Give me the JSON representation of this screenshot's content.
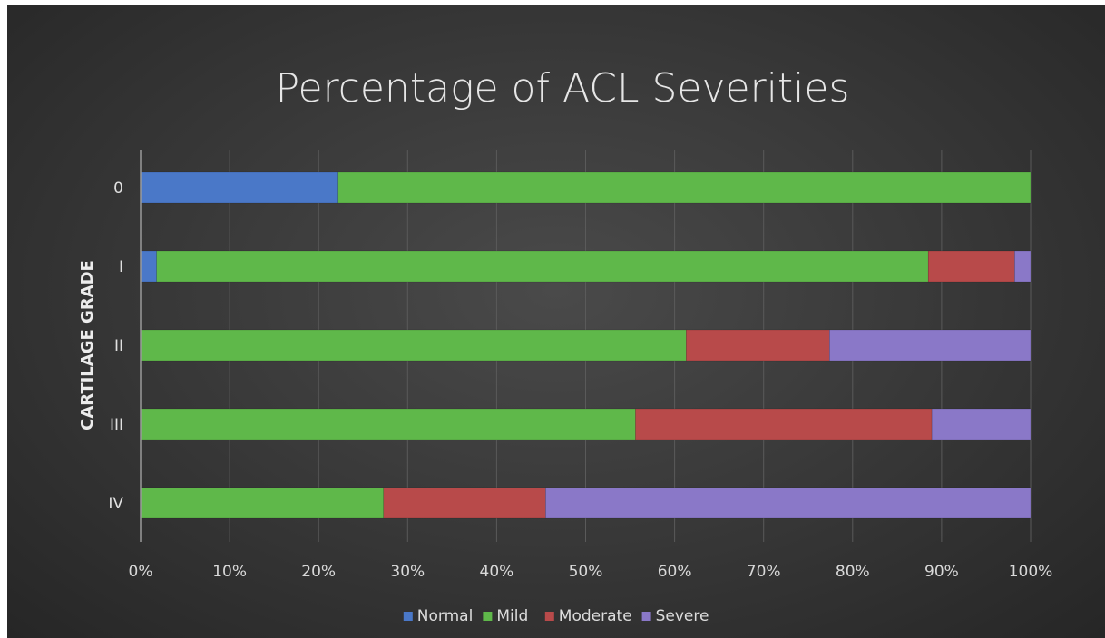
{
  "chart_data": {
    "type": "bar",
    "orientation": "horizontal",
    "stacked": true,
    "title": "Percentage of ACL Severities",
    "xlabel": "",
    "ylabel": "CARTILAGE GRADE",
    "xlim": [
      0,
      100
    ],
    "x_ticks": [
      "0%",
      "10%",
      "20%",
      "30%",
      "40%",
      "50%",
      "60%",
      "70%",
      "80%",
      "90%",
      "100%"
    ],
    "categories": [
      "0",
      "I",
      "II",
      "III",
      "IV"
    ],
    "series": [
      {
        "name": "Normal",
        "color": "#4a78c8",
        "values": [
          22.2,
          1.8,
          0,
          0,
          0
        ]
      },
      {
        "name": "Mild",
        "color": "#5fb84a",
        "values": [
          77.8,
          86.7,
          61.3,
          55.6,
          27.3
        ]
      },
      {
        "name": "Moderate",
        "color": "#b84a4a",
        "values": [
          0,
          9.7,
          16.1,
          33.3,
          18.2
        ]
      },
      {
        "name": "Severe",
        "color": "#8a78c8",
        "values": [
          0,
          1.8,
          22.6,
          11.1,
          54.5
        ]
      }
    ],
    "grid": "vertical",
    "legend": "bottom"
  }
}
